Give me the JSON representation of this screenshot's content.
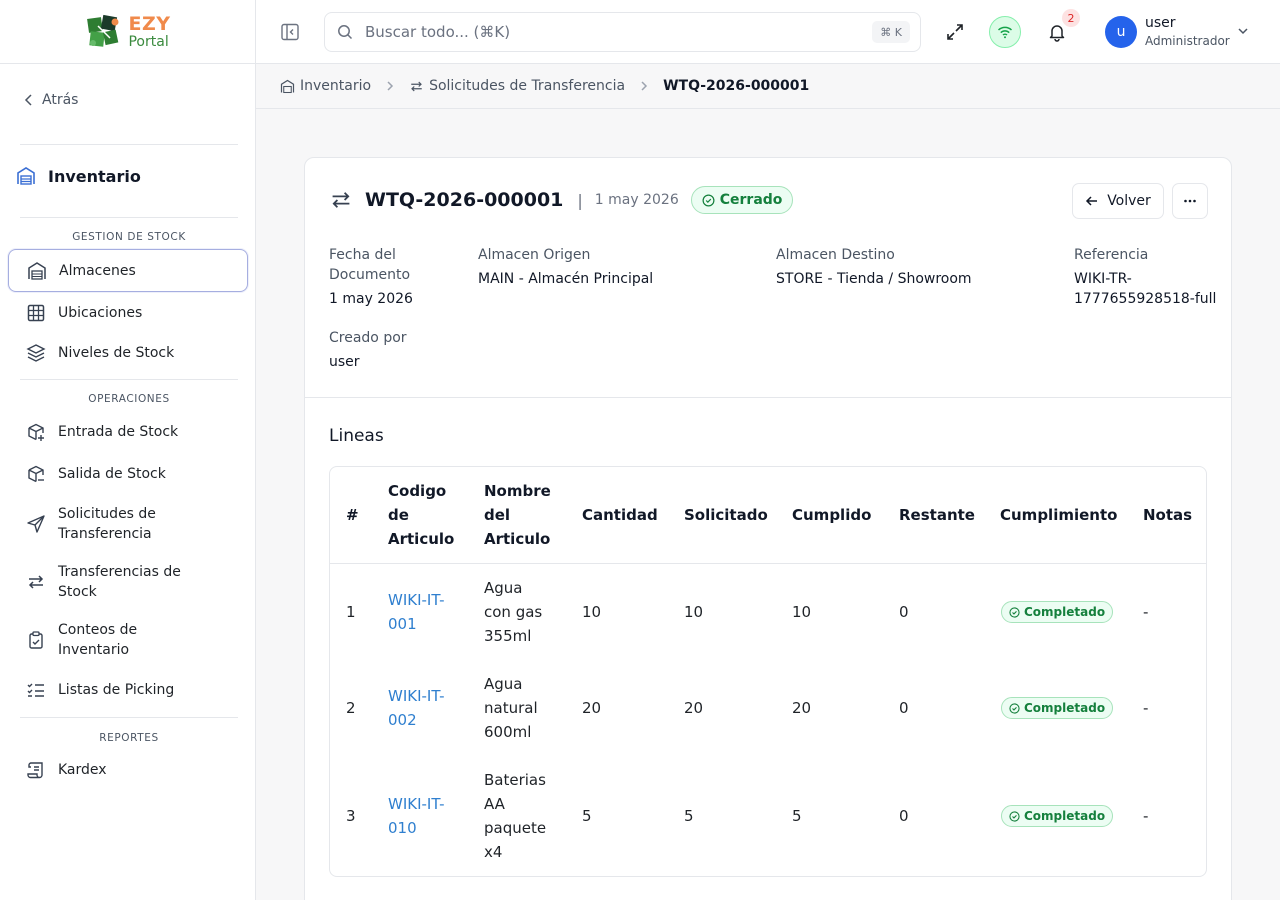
{
  "brand": {
    "name_top": "EZY",
    "name_bottom": "Portal"
  },
  "sidebar": {
    "back_label": "Atrás",
    "module_title": "Inventario",
    "sections": [
      {
        "label": "GESTION DE STOCK",
        "items": [
          "Almacenes",
          "Ubicaciones",
          "Niveles de Stock"
        ]
      },
      {
        "label": "OPERACIONES",
        "items": [
          "Entrada de Stock",
          "Salida de Stock",
          "Solicitudes de Transferencia",
          "Transferencias de Stock",
          "Conteos de Inventario",
          "Listas de Picking"
        ]
      },
      {
        "label": "REPORTES",
        "items": [
          "Kardex"
        ]
      }
    ]
  },
  "header": {
    "search_placeholder": "Buscar todo... (⌘K)",
    "search_shortcut": "⌘ K",
    "notification_count": "2",
    "user": {
      "initial": "u",
      "name": "user",
      "role": "Administrador"
    }
  },
  "breadcrumb": [
    "Inventario",
    "Solicitudes de Transferencia",
    "WTQ-2026-000001"
  ],
  "document": {
    "code": "WTQ-2026-000001",
    "separator": "|",
    "date": "1 may 2026",
    "status": "Cerrado",
    "back_button": "Volver",
    "fields": {
      "doc_date_label_1": "Fecha del",
      "doc_date_label_2": "Documento",
      "doc_date": "1 may 2026",
      "origin_label": "Almacen Origen",
      "origin": "MAIN - Almacén Principal",
      "dest_label": "Almacen Destino",
      "dest": "STORE - Tienda / Showroom",
      "ref_label": "Referencia",
      "ref_1": "WIKI-TR-",
      "ref_2": "1777655928518-full",
      "created_label": "Creado por",
      "created_by": "user"
    }
  },
  "lines": {
    "title": "Lineas",
    "headers": {
      "num": "#",
      "code": [
        "Codigo",
        "de",
        "Articulo"
      ],
      "name": [
        "Nombre",
        "del",
        "Articulo"
      ],
      "qty": "Cantidad",
      "requested": "Solicitado",
      "fulfilled": "Cumplido",
      "remaining": "Restante",
      "fulfillment": "Cumplimiento",
      "notes": "Notas"
    },
    "rows": [
      {
        "num": "1",
        "code": [
          "WIKI-IT-",
          "001"
        ],
        "name": [
          "Agua",
          "con gas",
          "355ml"
        ],
        "qty": "10",
        "requested": "10",
        "fulfilled": "10",
        "remaining": "0",
        "fulfillment": "Completado",
        "notes": "-"
      },
      {
        "num": "2",
        "code": [
          "WIKI-IT-",
          "002"
        ],
        "name": [
          "Agua",
          "natural",
          "600ml"
        ],
        "qty": "20",
        "requested": "20",
        "fulfilled": "20",
        "remaining": "0",
        "fulfillment": "Completado",
        "notes": "-"
      },
      {
        "num": "3",
        "code": [
          "WIKI-IT-",
          "010"
        ],
        "name": [
          "Baterias",
          "AA",
          "paquete",
          "x4"
        ],
        "qty": "5",
        "requested": "5",
        "fulfilled": "5",
        "remaining": "0",
        "fulfillment": "Completado",
        "notes": "-"
      }
    ]
  },
  "colors": {
    "accent_blue": "#2563eb",
    "link": "#2f7fcf",
    "success": "#15803d",
    "success_bg": "#ecfdf3"
  }
}
